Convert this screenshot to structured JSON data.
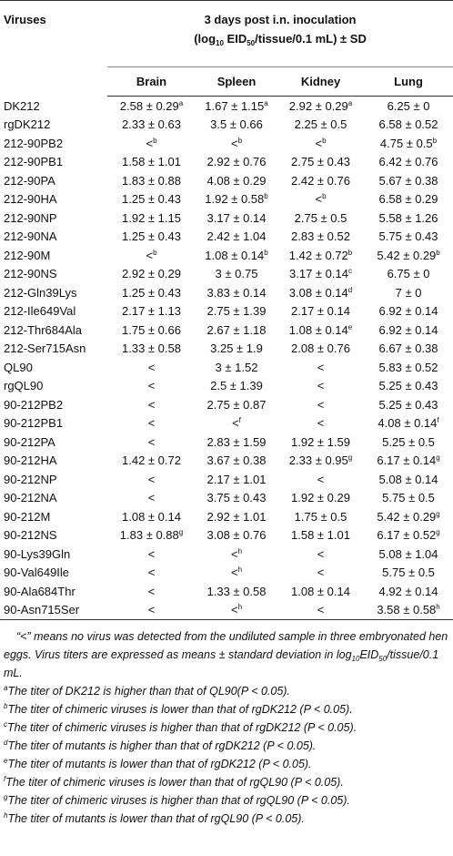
{
  "header": {
    "first_column": "Viruses",
    "group_line1": "3 days post i.n. inoculation",
    "group_line2": [
      {
        "text": "(log"
      },
      {
        "sub": "10"
      },
      {
        "text": " EID"
      },
      {
        "sub": "50"
      },
      {
        "text": "/tissue/0.1 mL) ± SD"
      }
    ],
    "columns": [
      "Brain",
      "Spleen",
      "Kidney",
      "Lung"
    ]
  },
  "table": {
    "rows": [
      [
        "DK212",
        {
          "text": "2.58 ± 0.29",
          "sup": "a"
        },
        {
          "text": "1.67 ± 1.15",
          "sup": "a"
        },
        {
          "text": "2.92 ± 0.29",
          "sup": "a"
        },
        "6.25 ± 0"
      ],
      [
        "rgDK212",
        "2.33 ± 0.63",
        "3.5 ± 0.66",
        "2.25 ± 0.5",
        "6.58 ± 0.52"
      ],
      [
        "212-90PB2",
        {
          "text": "<",
          "sup": "b"
        },
        {
          "text": "<",
          "sup": "b"
        },
        {
          "text": "<",
          "sup": "b"
        },
        {
          "text": "4.75 ± 0.5",
          "sup": "b"
        }
      ],
      [
        "212-90PB1",
        "1.58 ± 1.01",
        "2.92 ± 0.76",
        "2.75 ± 0.43",
        "6.42 ± 0.76"
      ],
      [
        "212-90PA",
        "1.83 ± 0.88",
        "4.08 ± 0.29",
        "2.42 ± 0.76",
        "5.67 ± 0.38"
      ],
      [
        "212-90HA",
        "1.25 ± 0.43",
        {
          "text": "1.92 ± 0.58",
          "sup": "b"
        },
        {
          "text": "<",
          "sup": "b"
        },
        "6.58 ± 0.29"
      ],
      [
        "212-90NP",
        "1.92 ± 1.15",
        "3.17 ± 0.14",
        "2.75 ± 0.5",
        "5.58 ± 1.26"
      ],
      [
        "212-90NA",
        "1.25 ± 0.43",
        "2.42 ± 1.04",
        "2.83 ± 0.52",
        "5.75 ± 0.43"
      ],
      [
        "212-90M",
        {
          "text": "<",
          "sup": "b"
        },
        {
          "text": "1.08 ± 0.14",
          "sup": "b"
        },
        {
          "text": "1.42 ± 0.72",
          "sup": "b"
        },
        {
          "text": "5.42 ± 0.29",
          "sup": "b"
        }
      ],
      [
        "212-90NS",
        "2.92 ± 0.29",
        "3 ± 0.75",
        {
          "text": "3.17 ± 0.14",
          "sup": "c"
        },
        "6.75 ± 0"
      ],
      [
        "212-Gln39Lys",
        "1.25 ± 0.43",
        "3.83 ± 0.14",
        {
          "text": "3.08 ± 0.14",
          "sup": "d"
        },
        "7 ± 0"
      ],
      [
        "212-Ile649Val",
        "2.17 ± 1.13",
        "2.75 ± 1.39",
        "2.17 ± 0.14",
        "6.92 ± 0.14"
      ],
      [
        "212-Thr684Ala",
        "1.75 ± 0.66",
        "2.67 ± 1.18",
        {
          "text": "1.08 ± 0.14",
          "sup": "e"
        },
        "6.92 ± 0.14"
      ],
      [
        "212-Ser715Asn",
        "1.33 ± 0.58",
        "3.25 ± 1.9",
        "2.08 ± 0.76",
        "6.67 ± 0.38"
      ],
      [
        "QL90",
        "<",
        "3 ± 1.52",
        "<",
        "5.83 ± 0.52"
      ],
      [
        "rgQL90",
        "<",
        "2.5 ± 1.39",
        "<",
        "5.25 ± 0.43"
      ],
      [
        "90-212PB2",
        "<",
        "2.75 ± 0.87",
        "<",
        "5.25 ± 0.43"
      ],
      [
        "90-212PB1",
        "<",
        {
          "text": "<",
          "sup": "f"
        },
        "<",
        {
          "text": "4.08 ± 0.14",
          "sup": "f"
        }
      ],
      [
        "90-212PA",
        "<",
        "2.83 ± 1.59",
        "1.92 ± 1.59",
        "5.25 ± 0.5"
      ],
      [
        "90-212HA",
        "1.42 ± 0.72",
        "3.67 ± 0.38",
        {
          "text": "2.33 ± 0.95",
          "sup": "g"
        },
        {
          "text": "6.17 ± 0.14",
          "sup": "g"
        }
      ],
      [
        "90-212NP",
        "<",
        "2.17 ± 1.01",
        "<",
        "5.08 ± 0.14"
      ],
      [
        "90-212NA",
        "<",
        "3.75 ± 0.43",
        "1.92 ± 0.29",
        "5.75 ± 0.5"
      ],
      [
        "90-212M",
        "1.08 ± 0.14",
        "2.92 ± 1.01",
        "1.75 ± 0.5",
        {
          "text": "5.42 ± 0.29",
          "sup": "g"
        }
      ],
      [
        "90-212NS",
        {
          "text": "1.83 ± 0.88",
          "sup": "g"
        },
        "3.08 ± 0.76",
        "1.58 ± 1.01",
        {
          "text": "6.17 ± 0.52",
          "sup": "g"
        }
      ],
      [
        "90-Lys39Gln",
        "<",
        {
          "text": "<",
          "sup": "h"
        },
        "<",
        "5.08 ± 1.04"
      ],
      [
        "90-Val649Ile",
        "<",
        {
          "text": "<",
          "sup": "h"
        },
        "<",
        "5.75 ± 0.5"
      ],
      [
        "90-Ala684Thr",
        "<",
        "1.33 ± 0.58",
        "1.08 ± 0.14",
        "4.92 ± 0.14"
      ],
      [
        "90-Asn715Ser",
        "<",
        {
          "text": "<",
          "sup": "h"
        },
        "<",
        {
          "text": "3.58 ± 0.58",
          "sup": "h"
        }
      ]
    ]
  },
  "note": [
    {
      "text": "“<” means no virus was detected from the undiluted sample in three embryonated hen eggs. Virus titers are expressed as means ± standard deviation in log"
    },
    {
      "sub": "10"
    },
    {
      "text": "EID"
    },
    {
      "sub": "50"
    },
    {
      "text": "/tissue/0.1 mL."
    }
  ],
  "footnotes": [
    {
      "mark": "a",
      "text": "The titer of DK212 is higher than that of QL90(P < 0.05)."
    },
    {
      "mark": "b",
      "text": "The titer of chimeric viruses is lower than that of rgDK212 (P < 0.05)."
    },
    {
      "mark": "c",
      "text": "The titer of chimeric viruses is higher than that of rgDK212 (P < 0.05)."
    },
    {
      "mark": "d",
      "text": "The titer of mutants is higher than that of rgDK212 (P < 0.05)."
    },
    {
      "mark": "e",
      "text": "The titer of mutants is lower than that of rgDK212 (P < 0.05)."
    },
    {
      "mark": "f",
      "text": "The titer of chimeric viruses is lower than that of rgQL90 (P < 0.05)."
    },
    {
      "mark": "g",
      "text": "The titer of chimeric viruses is higher than that of rgQL90 (P < 0.05)."
    },
    {
      "mark": "h",
      "text": "The titer of mutants is lower than that of rgQL90 (P < 0.05)."
    }
  ]
}
